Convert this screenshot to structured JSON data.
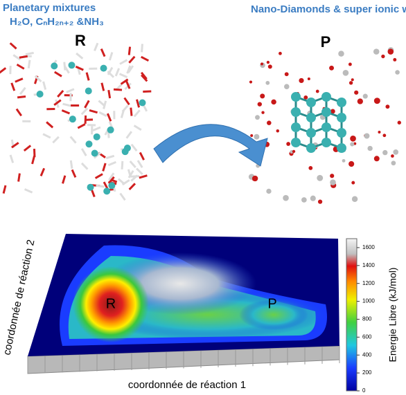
{
  "top_left": {
    "title": "Planetary mixtures",
    "formula": "H₂O, CₙH₂ₙ₊₂ &NH₃",
    "label": "R"
  },
  "top_right": {
    "title": "Nano-Diamonds & super ionic water",
    "label": "P"
  },
  "landscape": {
    "y_axis_label": "coordonnée de réaction 2",
    "x_axis_label": "coordonnée de réaction 1",
    "well_labels": [
      "R",
      "P"
    ],
    "colorbar": {
      "label": "Energie Libre (kJ/mol)",
      "lim": [
        0,
        1700
      ],
      "ticks": [
        0,
        200,
        400,
        600,
        800,
        1000,
        1200,
        1400,
        1600
      ]
    }
  }
}
